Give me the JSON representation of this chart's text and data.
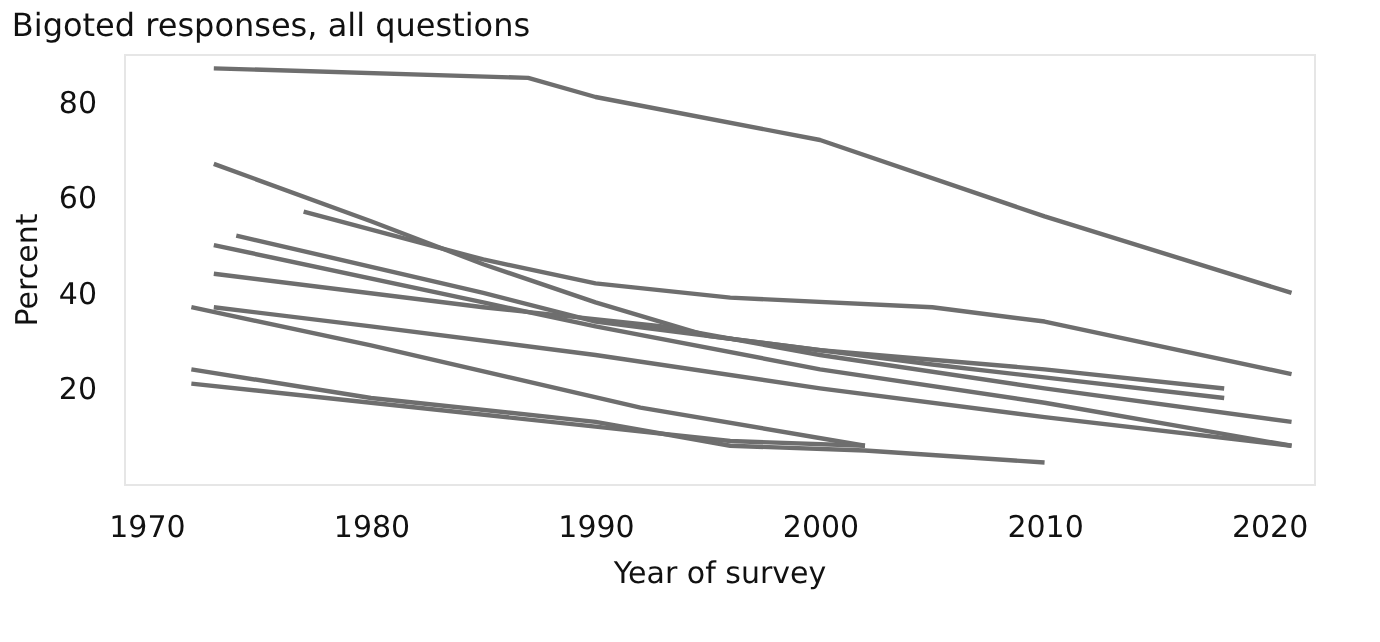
{
  "chart_data": {
    "type": "line",
    "title": "Bigoted responses, all questions",
    "xlabel": "Year of survey",
    "ylabel": "Percent",
    "xlim": [
      1969,
      2022
    ],
    "xticks": [
      1970,
      1980,
      1990,
      2000,
      2010,
      2020
    ],
    "ylim": [
      0,
      90
    ],
    "yticks": [
      20,
      40,
      60,
      80
    ],
    "grid": false,
    "legend": false,
    "marker": "none",
    "line_style": "solid",
    "series": [
      {
        "color": "#6e6e6e",
        "x": [
          1973,
          1987,
          1990,
          2000,
          2010,
          2021
        ],
        "values": [
          87,
          85,
          81,
          72,
          56,
          40
        ]
      },
      {
        "color": "#6e6e6e",
        "x": [
          1977,
          1985,
          1990,
          1996,
          2005,
          2010,
          2021
        ],
        "values": [
          57,
          47,
          42,
          39,
          37,
          34,
          23
        ]
      },
      {
        "color": "#6e6e6e",
        "x": [
          1973,
          1980,
          1985,
          1990,
          1995,
          2005,
          2018
        ],
        "values": [
          67,
          55,
          46,
          38,
          31,
          25,
          18
        ]
      },
      {
        "color": "#6e6e6e",
        "x": [
          1974,
          1985,
          1990,
          2000,
          2010,
          2018
        ],
        "values": [
          52,
          40,
          34,
          28,
          24,
          20
        ]
      },
      {
        "color": "#6e6e6e",
        "x": [
          1973,
          1985,
          1990,
          2000,
          2010,
          2021
        ],
        "values": [
          50,
          38,
          33,
          24,
          17,
          8
        ]
      },
      {
        "color": "#6e6e6e",
        "x": [
          1973,
          1985,
          1993,
          2000,
          2010,
          2021
        ],
        "values": [
          44,
          37,
          33,
          27,
          20,
          13
        ]
      },
      {
        "color": "#6e6e6e",
        "x": [
          1973,
          1980,
          1990,
          2000,
          2010,
          2021
        ],
        "values": [
          37,
          33,
          27,
          20,
          14,
          8
        ]
      },
      {
        "color": "#6e6e6e",
        "x": [
          1972,
          1980,
          1992,
          2002
        ],
        "values": [
          37,
          29,
          16,
          8
        ]
      },
      {
        "color": "#6e6e6e",
        "x": [
          1972,
          1980,
          1990,
          1996,
          2002,
          2010
        ],
        "values": [
          24,
          18,
          13,
          8,
          7,
          4.5
        ]
      },
      {
        "color": "#6e6e6e",
        "x": [
          1972,
          1980,
          1990,
          1996,
          2002
        ],
        "values": [
          21,
          17,
          12,
          9,
          8
        ]
      }
    ]
  }
}
